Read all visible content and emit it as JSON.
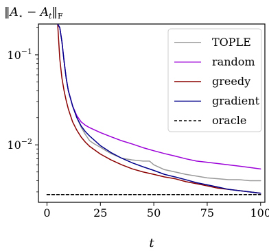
{
  "chart_data": {
    "type": "line",
    "title": "",
    "xlabel": "t",
    "ylabel": "‖A⋆ − At‖F",
    "xlim": [
      -4,
      102
    ],
    "ylim": [
      0.0023,
      0.22
    ],
    "yscale": "log",
    "grid": false,
    "legend_position": "top-right",
    "x_ticks": [
      0,
      25,
      50,
      75,
      100
    ],
    "x_tick_labels": [
      "0",
      "25",
      "50",
      "75",
      "100"
    ],
    "y_ticks": [
      0.1,
      0.01
    ],
    "y_tick_labels": [
      "10−1",
      "10−2"
    ],
    "series": [
      {
        "name": "TOPLE",
        "color": "#999999",
        "dash": "",
        "x": [
          5,
          6,
          7,
          8,
          9,
          10,
          12,
          14,
          16,
          18,
          20,
          22,
          25,
          28,
          30,
          35,
          40,
          45,
          48,
          49,
          50,
          55,
          60,
          65,
          70,
          75,
          80,
          85,
          90,
          95,
          100
        ],
        "y": [
          0.22,
          0.2,
          0.14,
          0.085,
          0.055,
          0.04,
          0.027,
          0.02,
          0.0157,
          0.013,
          0.0111,
          0.0103,
          0.0094,
          0.0085,
          0.008,
          0.0071,
          0.0068,
          0.0066,
          0.0066,
          0.0063,
          0.006,
          0.0053,
          0.005,
          0.0047,
          0.0045,
          0.0043,
          0.0042,
          0.0041,
          0.0041,
          0.004,
          0.004
        ]
      },
      {
        "name": "random",
        "color": "#9b00d8",
        "dash": "",
        "x": [
          5,
          6,
          7,
          8,
          9,
          10,
          12,
          14,
          16,
          18,
          20,
          25,
          30,
          35,
          40,
          45,
          50,
          55,
          60,
          65,
          70,
          75,
          80,
          85,
          90,
          95,
          100
        ],
        "y": [
          0.22,
          0.2,
          0.14,
          0.085,
          0.055,
          0.04,
          0.027,
          0.021,
          0.018,
          0.0165,
          0.0155,
          0.0137,
          0.0123,
          0.0111,
          0.0102,
          0.0093,
          0.0086,
          0.008,
          0.0075,
          0.007,
          0.0066,
          0.0064,
          0.0062,
          0.006,
          0.0058,
          0.0056,
          0.0054
        ]
      },
      {
        "name": "greedy",
        "color": "#8b0000",
        "dash": "",
        "x": [
          5,
          6,
          7,
          8,
          9,
          10,
          12,
          14,
          16,
          18,
          20,
          25,
          30,
          35,
          40,
          45,
          50,
          55,
          60,
          65,
          70,
          75,
          80,
          85,
          90,
          95,
          100
        ],
        "y": [
          0.22,
          0.09,
          0.055,
          0.04,
          0.031,
          0.025,
          0.018,
          0.0145,
          0.0122,
          0.0107,
          0.0096,
          0.0079,
          0.0068,
          0.006,
          0.0054,
          0.005,
          0.0047,
          0.0044,
          0.0042,
          0.0039,
          0.0037,
          0.0035,
          0.0033,
          0.0032,
          0.0031,
          0.003,
          0.0029
        ]
      },
      {
        "name": "gradient",
        "color": "#00008b",
        "dash": "",
        "x": [
          5,
          6,
          7,
          8,
          9,
          10,
          12,
          14,
          16,
          18,
          20,
          25,
          30,
          35,
          40,
          45,
          50,
          55,
          60,
          65,
          70,
          75,
          80,
          85,
          90,
          95,
          100
        ],
        "y": [
          0.22,
          0.2,
          0.14,
          0.085,
          0.055,
          0.04,
          0.027,
          0.02,
          0.0162,
          0.014,
          0.0125,
          0.0098,
          0.0082,
          0.0071,
          0.0063,
          0.0057,
          0.0052,
          0.0047,
          0.0044,
          0.0041,
          0.0038,
          0.0036,
          0.0034,
          0.0032,
          0.0031,
          0.003,
          0.0029
        ]
      },
      {
        "name": "oracle",
        "color": "#000000",
        "dash": "4,3",
        "x": [
          0,
          100
        ],
        "y": [
          0.0028,
          0.0028
        ]
      }
    ]
  }
}
